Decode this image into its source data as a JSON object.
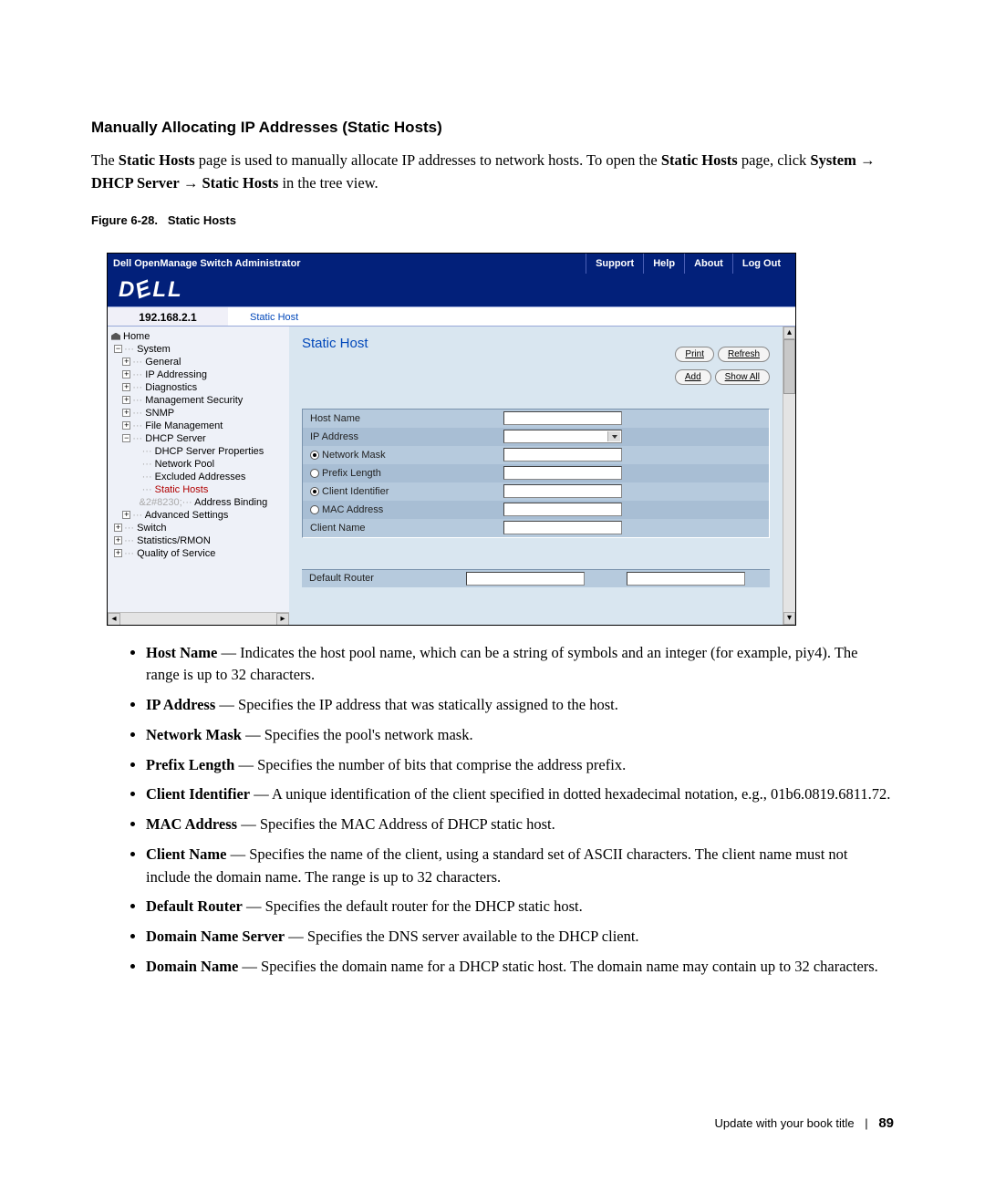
{
  "doc": {
    "section_heading": "Manually Allocating IP Addresses (Static Hosts)",
    "intro": {
      "p1a": "The ",
      "b1": "Static Hosts",
      "p1b": " page is used to manually allocate IP addresses to network hosts. To open the ",
      "b2": "Static Hosts",
      "p1c": " page, click ",
      "b3": "System",
      "arrow1": " → ",
      "b4": "DHCP Server",
      "arrow2": " → ",
      "b5": "Static Hosts",
      "p1d": " in the tree view."
    },
    "figure_caption_num": "Figure 6-28.",
    "figure_caption_name": "Static Hosts",
    "bullets": [
      {
        "term": "Host Name",
        "text": " — Indicates the host pool name, which can be a string of symbols and an integer (for example, piy4). The range is up to 32 characters."
      },
      {
        "term": "IP Address",
        "text": " — Specifies the IP address that was statically assigned to the host."
      },
      {
        "term": "Network Mask",
        "text": " — Specifies the pool's network mask."
      },
      {
        "term": "Prefix Length",
        "text": " — Specifies the number of bits that comprise the address prefix."
      },
      {
        "term": "Client Identifier",
        "text": " — A unique identification of the client specified in dotted hexadecimal notation, e.g., 01b6.0819.6811.72."
      },
      {
        "term": "MAC Address",
        "text": " — Specifies the MAC Address of DHCP static host."
      },
      {
        "term": "Client Name",
        "text": " — Specifies the name of the client, using a standard set of ASCII characters. The client name must not include the domain name. The range is up to 32 characters."
      },
      {
        "term": "Default Router",
        "text": " — Specifies the default router for the DHCP static host."
      },
      {
        "term": "Domain Name Server",
        "text": " — Specifies the DNS server available to the DHCP client."
      },
      {
        "term": "Domain Name",
        "text": " — Specifies the domain name for a DHCP static host. The domain name may contain up to 32 characters."
      }
    ],
    "footer_title": "Update with your book title",
    "footer_page": "89"
  },
  "ui": {
    "titlebar": {
      "title": "Dell OpenManage Switch Administrator",
      "links": [
        "Support",
        "Help",
        "About",
        "Log Out"
      ]
    },
    "logo_text": "DELL",
    "breadcrumb": {
      "ip": "192.168.2.1",
      "path": "Static Host"
    },
    "tree": {
      "home": "Home",
      "system": "System",
      "items1": [
        "General",
        "IP Addressing",
        "Diagnostics",
        "Management Security",
        "SNMP",
        "File Management"
      ],
      "dhcp": "DHCP Server",
      "dhcp_items": [
        "DHCP Server Properties",
        "Network Pool",
        "Excluded Addresses",
        "Static Hosts",
        "Address Binding"
      ],
      "adv": "Advanced Settings",
      "switch": "Switch",
      "stats": "Statistics/RMON",
      "qos": "Quality of Service"
    },
    "panel": {
      "title": "Static Host",
      "btn_print": "Print",
      "btn_refresh": "Refresh",
      "btn_add": "Add",
      "btn_showall": "Show All",
      "rows": {
        "host_name": "Host Name",
        "ip_address": "IP Address",
        "network_mask": "Network Mask",
        "prefix_length": "Prefix Length",
        "client_identifier": "Client Identifier",
        "mac_address": "MAC Address",
        "client_name": "Client Name",
        "default_router": "Default Router"
      }
    }
  },
  "colors": {
    "title_blue": "#02207a",
    "link_blue": "#0047ba",
    "tree_bg": "#eef1f8",
    "right_bg": "#d9e6f0",
    "form_bg": "#b6cadd",
    "form_alt": "#a8bed4",
    "selected_red": "#b00000"
  }
}
